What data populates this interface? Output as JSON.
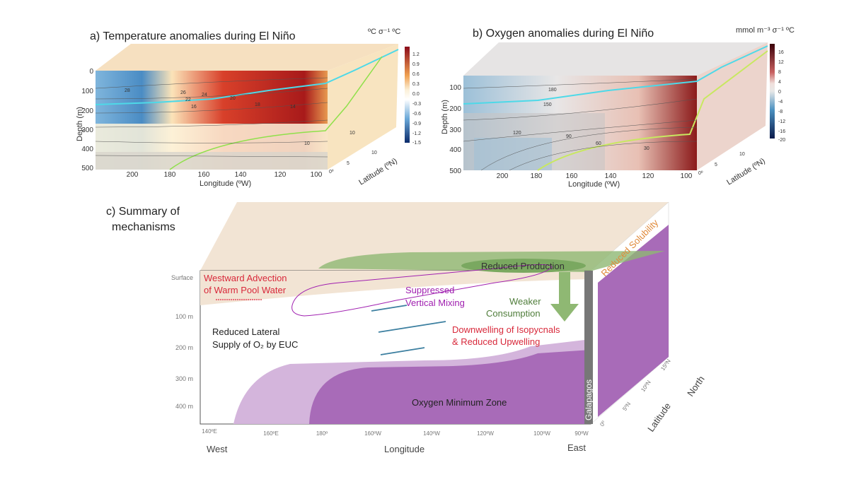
{
  "panel_a": {
    "title": "a) Temperature anomalies during El Niño",
    "units": "ºC σ⁻¹ ºC",
    "ylabel": "Depth (m)",
    "xlabel": "Longitude (ºW)",
    "zlabel": "Latitude (ºN)",
    "depth_ticks": [
      "0",
      "100",
      "200",
      "300",
      "400",
      "500"
    ],
    "lon_ticks": [
      "200",
      "180",
      "160",
      "140",
      "120",
      "100"
    ],
    "lat_ticks": [
      "0º",
      "5",
      "10"
    ],
    "colorbar_ticks": [
      "1.2",
      "0.9",
      "0.6",
      "0.3",
      "0.0",
      "-0.3",
      "-0.6",
      "-0.9",
      "-1.2",
      "-1.5"
    ],
    "contour_labels": [
      "28",
      "26",
      "24",
      "22",
      "20",
      "18",
      "16",
      "14",
      "10",
      "10"
    ],
    "colors": {
      "warm": "#b2182b",
      "cool": "#2166ac",
      "thermocline": "#4dd9e8",
      "oxycline": "#8fe04a"
    }
  },
  "panel_b": {
    "title": "b) Oxygen anomalies during El Niño",
    "units": "mmol m⁻³ σ⁻¹ ºC",
    "ylabel": "Depth (m)",
    "xlabel": "Longitude (ºW)",
    "zlabel": "Latitude (ºN)",
    "depth_ticks": [
      "100",
      "200",
      "300",
      "400",
      "500"
    ],
    "lon_ticks": [
      "200",
      "180",
      "160",
      "140",
      "120",
      "100"
    ],
    "lat_ticks": [
      "0º",
      "5",
      "10"
    ],
    "colorbar_ticks": [
      "16",
      "12",
      "8",
      "4",
      "0",
      "-4",
      "-8",
      "-12",
      "-16",
      "-20"
    ],
    "contour_labels": [
      "180",
      "150",
      "120",
      "90",
      "60",
      "30"
    ],
    "colors": {
      "positive": "#8b1a1a",
      "negative": "#2166ac",
      "thermocline": "#4dd9e8",
      "oxycline": "#c8e860",
      "yellow": "#f0d040"
    }
  },
  "panel_c": {
    "title_line1": "c) Summary of",
    "title_line2": "mechanisms",
    "depth_ticks": [
      "Surface",
      "100 m",
      "200 m",
      "300 m",
      "400 m"
    ],
    "lon_ticks": [
      "140ºE",
      "160ºE",
      "180º",
      "160ºW",
      "140ºW",
      "120ºW",
      "100ºW",
      "90ºW"
    ],
    "lat_ticks": [
      "0º",
      "5ºN",
      "10ºN",
      "15ºN"
    ],
    "xlabel": "Longitude",
    "latitude_label": "Latitude",
    "west": "West",
    "east": "East",
    "north": "North",
    "labels": {
      "westward_advection_1": "Westward Advection",
      "westward_advection_2": "of Warm Pool Water",
      "reduced_production": "Reduced Production",
      "suppressed_1": "Suppressed",
      "suppressed_2": "Vertical Mixing",
      "weaker_1": "Weaker",
      "weaker_2": "Consumption",
      "lateral_1": "Reduced Lateral",
      "lateral_2": "Supply of O₂ by EUC",
      "downwelling_1": "Downwelling of Isopycnals",
      "downwelling_2": "& Reduced Upwelling",
      "omz": "Oxygen Minimum Zone",
      "galapagos": "Galapagos",
      "solubility": "Reduced Solubility"
    },
    "colors": {
      "warm_pool": "#f2e4d4",
      "production": "#8fb873",
      "omz": "#a86bb8",
      "omz_light": "#d4b5dc",
      "red_text": "#d8283a",
      "green_text": "#4f7d3a",
      "purple_text": "#a020b0",
      "euc_arrow": "#3c7fa0",
      "orange_text": "#e08a3a"
    }
  }
}
